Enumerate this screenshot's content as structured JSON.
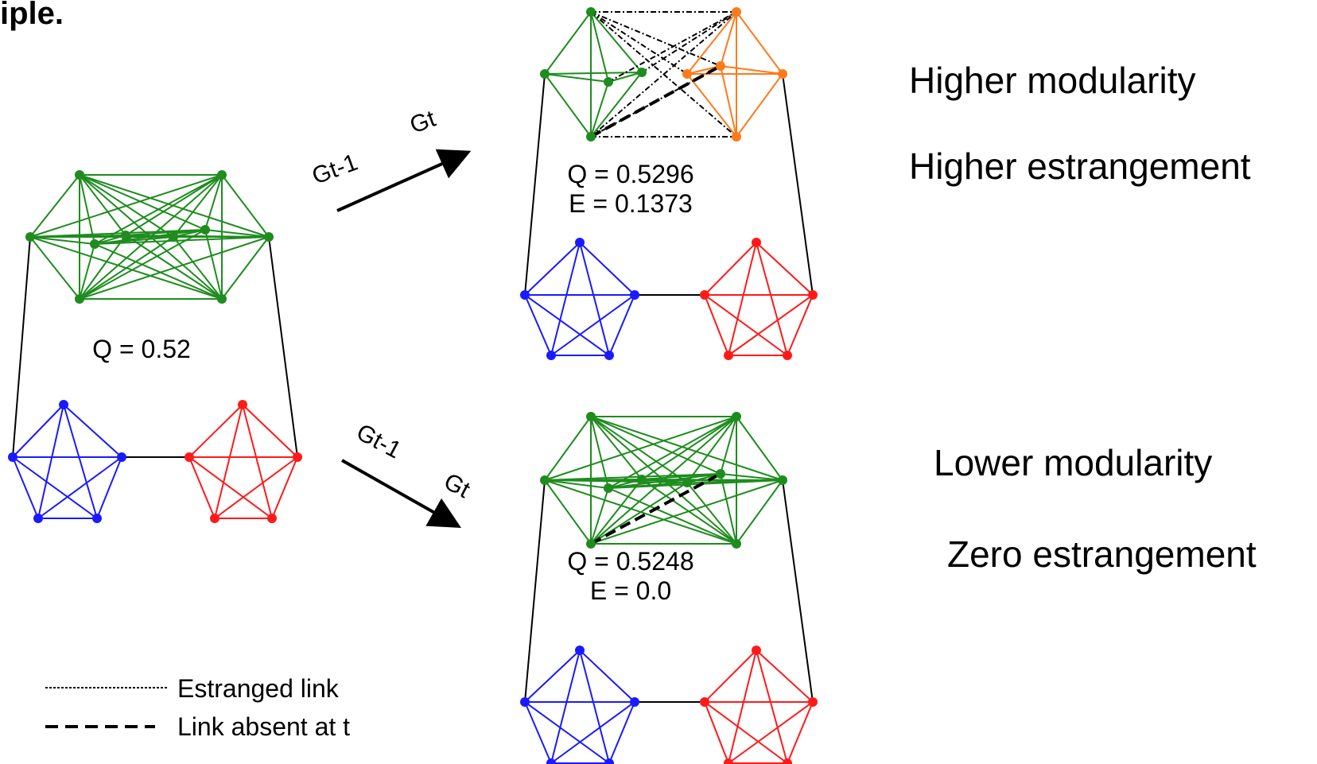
{
  "title_fragment": "iple.",
  "transition_top": {
    "from": "Gt-1",
    "to": "Gt"
  },
  "transition_bottom": {
    "from": "Gt-1",
    "to": "Gt"
  },
  "initial_graph": {
    "q_text": "Q = 0.52"
  },
  "top_graph": {
    "q_text": "Q = 0.5296",
    "e_text": "E = 0.1373"
  },
  "bottom_graph": {
    "q_text": "Q = 0.5248",
    "e_text": "E = 0.0"
  },
  "annotations": {
    "top_line1": "Higher modularity",
    "top_line2": "Higher estrangement",
    "bottom_line1": "Lower modularity",
    "bottom_line2": "Zero estrangement"
  },
  "legend": {
    "estranged": "Estranged link",
    "absent": "Link absent at t"
  },
  "colors": {
    "green": "#1e8c1e",
    "blue": "#1a1aff",
    "red": "#ff1a1a",
    "orange": "#ff7a1a",
    "black": "#000000"
  }
}
